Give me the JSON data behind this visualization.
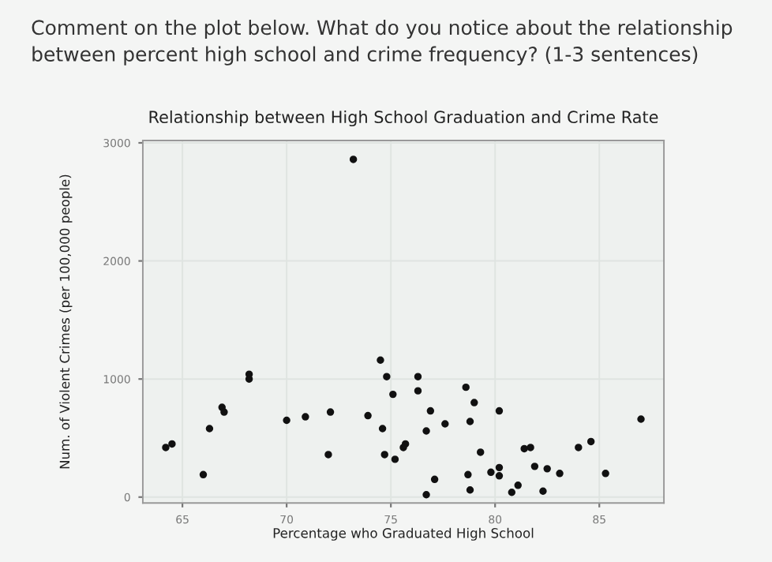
{
  "chart_data": {
    "type": "scatter",
    "title": "Relationship between High School Graduation and Crime Rate",
    "xlabel": "Percentage who Graduated High School",
    "ylabel": "Num. of Violent Crimes (per 100,000 people)",
    "annotations": [
      "Comment on the plot below. What do you notice about the relationship between percent high school and crime frequency? (1-3 sentences)"
    ],
    "x": [
      64.2,
      64.5,
      66.0,
      66.3,
      66.9,
      67.0,
      68.2,
      68.2,
      70.0,
      70.9,
      72.0,
      72.1,
      73.2,
      73.9,
      74.5,
      74.6,
      74.7,
      74.8,
      75.1,
      75.2,
      75.6,
      75.7,
      76.3,
      76.3,
      76.7,
      76.7,
      76.9,
      77.1,
      77.6,
      78.6,
      78.7,
      78.8,
      78.8,
      79.0,
      79.3,
      79.8,
      80.2,
      80.2,
      80.2,
      80.8,
      81.1,
      81.4,
      81.7,
      81.9,
      82.3,
      82.5,
      83.1,
      84.0,
      84.6,
      85.3,
      87.0
    ],
    "values": [
      420,
      450,
      190,
      580,
      760,
      720,
      1040,
      1000,
      650,
      680,
      360,
      720,
      2860,
      690,
      1160,
      580,
      360,
      1020,
      870,
      320,
      420,
      450,
      1020,
      900,
      20,
      560,
      730,
      150,
      620,
      930,
      190,
      640,
      60,
      800,
      380,
      210,
      730,
      250,
      180,
      40,
      100,
      410,
      420,
      260,
      50,
      240,
      200,
      420,
      470,
      200,
      660
    ],
    "color": "#111111",
    "marker": "circle",
    "xlim": [
      63.1,
      88.1
    ],
    "ylim": [
      -50,
      3020
    ],
    "xticks": [
      65,
      70,
      75,
      80,
      85
    ],
    "yticks": [
      0,
      1000,
      2000,
      3000
    ],
    "grid": true
  }
}
